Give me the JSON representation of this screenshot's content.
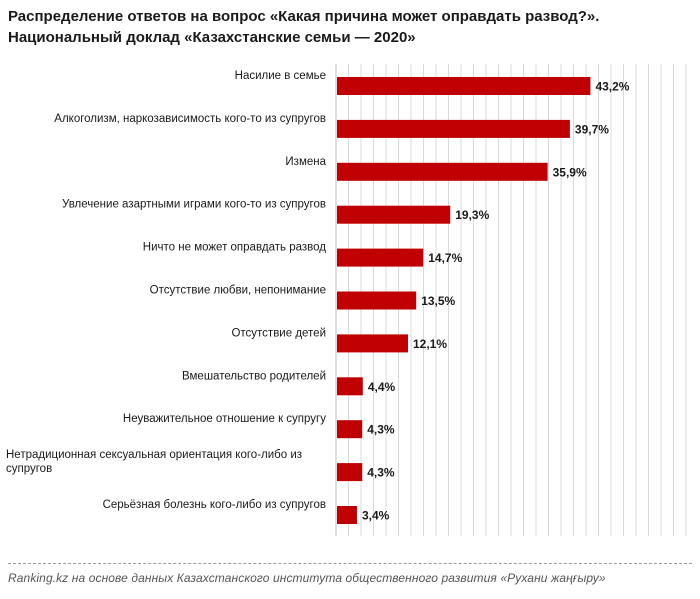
{
  "chart_data": {
    "type": "bar",
    "orientation": "horizontal",
    "title": "Распределение ответов на вопрос «Какая  причина может оправдать развод?».",
    "subtitle": "Национальный доклад «Казахстанские семьи — 2020»",
    "categories": [
      [
        "Насилие в семье"
      ],
      [
        "Алкоголизм, наркозависимость кого-то из супругов"
      ],
      [
        "Измена"
      ],
      [
        "Увлечение азартными играми кого-то из супругов"
      ],
      [
        "Ничто не может оправдать развод"
      ],
      [
        "Отсутствие любви, непонимание"
      ],
      [
        "Отсутствие детей"
      ],
      [
        "Вмешательство родителей"
      ],
      [
        "Неуважительное отношение к супругу"
      ],
      [
        "Нетрадиционная сексуальная ориентация кого-либо из",
        "супругов"
      ],
      [
        "Серьёзная болезнь кого-либо из супругов"
      ]
    ],
    "values": [
      43.2,
      39.7,
      35.9,
      19.3,
      14.7,
      13.5,
      12.1,
      4.4,
      4.3,
      4.3,
      3.4
    ],
    "value_labels": [
      "43,2%",
      "39,7%",
      "35,9%",
      "19,3%",
      "14,7%",
      "13,5%",
      "12,1%",
      "4,4%",
      "4,3%",
      "4,3%",
      "3,4%"
    ],
    "xlim": [
      0,
      60
    ],
    "grid": true,
    "bar_color": "#c00000",
    "grid_color": "#d9d9d9"
  },
  "source": "Ranking.kz на основе данных Казахстанского института общественного развития «Рухани жаңғыру»"
}
